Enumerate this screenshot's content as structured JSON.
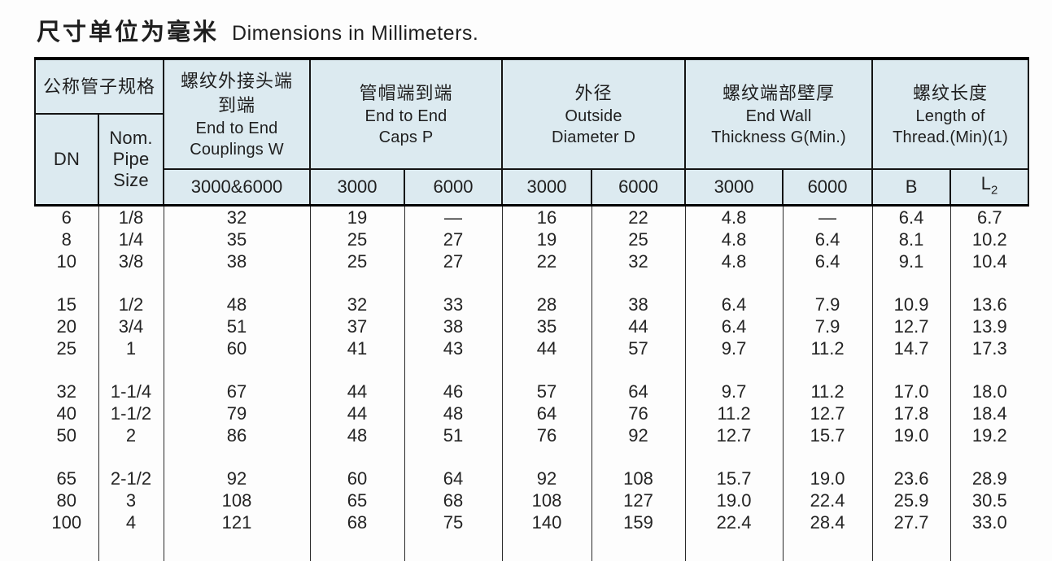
{
  "title": {
    "cjk": "尺寸单位为毫米",
    "en": "Dimensions in Millimeters."
  },
  "colors": {
    "header_bg": "#dceaf0",
    "border": "#141414",
    "text": "#1f1f1f"
  },
  "table": {
    "header": {
      "nominal": {
        "cjk": "公称管子规格"
      },
      "dn": "DN",
      "nom": {
        "line1": "Nom.",
        "line2": "Pipe",
        "line3": "Size"
      },
      "couplings": {
        "cjk1": "螺纹外接头端",
        "cjk2": "到端",
        "en1": "End to End",
        "en2": "Couplings W"
      },
      "caps": {
        "cjk": "管帽端到端",
        "en1": "End to End",
        "en2": "Caps P"
      },
      "od": {
        "cjk": "外径",
        "en1": "Outside",
        "en2": "Diameter D"
      },
      "wall": {
        "cjk": "螺纹端部壁厚",
        "en1": "End Wall",
        "en2": "Thickness G(Min.)"
      },
      "thread": {
        "cjk": "螺纹长度",
        "en1": "Length of",
        "en2": "Thread.(Min)(1)"
      }
    },
    "subheader": {
      "w": "3000&6000",
      "caps3000": "3000",
      "caps6000": "6000",
      "od3000": "3000",
      "od6000": "6000",
      "wall3000": "3000",
      "wall6000": "6000",
      "b": "B",
      "l2_main": "L",
      "l2_sub": "2"
    },
    "row_groups": [
      [
        [
          "6",
          "1/8",
          "32",
          "19",
          "—",
          "16",
          "22",
          "4.8",
          "—",
          "6.4",
          "6.7"
        ],
        [
          "8",
          "1/4",
          "35",
          "25",
          "27",
          "19",
          "25",
          "4.8",
          "6.4",
          "8.1",
          "10.2"
        ],
        [
          "10",
          "3/8",
          "38",
          "25",
          "27",
          "22",
          "32",
          "4.8",
          "6.4",
          "9.1",
          "10.4"
        ]
      ],
      [
        [
          "15",
          "1/2",
          "48",
          "32",
          "33",
          "28",
          "38",
          "6.4",
          "7.9",
          "10.9",
          "13.6"
        ],
        [
          "20",
          "3/4",
          "51",
          "37",
          "38",
          "35",
          "44",
          "6.4",
          "7.9",
          "12.7",
          "13.9"
        ],
        [
          "25",
          "1",
          "60",
          "41",
          "43",
          "44",
          "57",
          "9.7",
          "11.2",
          "14.7",
          "17.3"
        ]
      ],
      [
        [
          "32",
          "1-1/4",
          "67",
          "44",
          "46",
          "57",
          "64",
          "9.7",
          "11.2",
          "17.0",
          "18.0"
        ],
        [
          "40",
          "1-1/2",
          "79",
          "44",
          "48",
          "64",
          "76",
          "11.2",
          "12.7",
          "17.8",
          "18.4"
        ],
        [
          "50",
          "2",
          "86",
          "48",
          "51",
          "76",
          "92",
          "12.7",
          "15.7",
          "19.0",
          "19.2"
        ]
      ],
      [
        [
          "65",
          "2-1/2",
          "92",
          "60",
          "64",
          "92",
          "108",
          "15.7",
          "19.0",
          "23.6",
          "28.9"
        ],
        [
          "80",
          "3",
          "108",
          "65",
          "68",
          "108",
          "127",
          "19.0",
          "22.4",
          "25.9",
          "30.5"
        ],
        [
          "100",
          "4",
          "121",
          "68",
          "75",
          "140",
          "159",
          "22.4",
          "28.4",
          "27.7",
          "33.0"
        ]
      ]
    ]
  }
}
